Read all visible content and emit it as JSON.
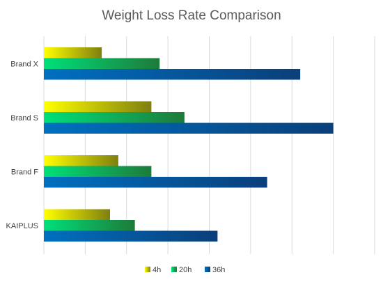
{
  "chart_data": {
    "type": "bar",
    "orientation": "horizontal",
    "title": "Weight Loss Rate Comparison",
    "categories": [
      "Brand X",
      "Brand S",
      "Brand F",
      "KAIPLUS"
    ],
    "series": [
      {
        "name": "4h",
        "values": [
          1.4,
          2.6,
          1.8,
          1.6
        ],
        "color_start": "#ffff00",
        "color_end": "#7f7f10"
      },
      {
        "name": "20h",
        "values": [
          2.8,
          3.4,
          2.6,
          2.2
        ],
        "color_start": "#00e07a",
        "color_end": "#1e7a3a"
      },
      {
        "name": "36h",
        "values": [
          6.2,
          7.0,
          5.4,
          4.2
        ],
        "color_start": "#0070c0",
        "color_end": "#0a3f7a"
      }
    ],
    "xlim": [
      0,
      8
    ],
    "grid": true,
    "legend_position": "bottom",
    "xlabel": "",
    "ylabel": ""
  }
}
